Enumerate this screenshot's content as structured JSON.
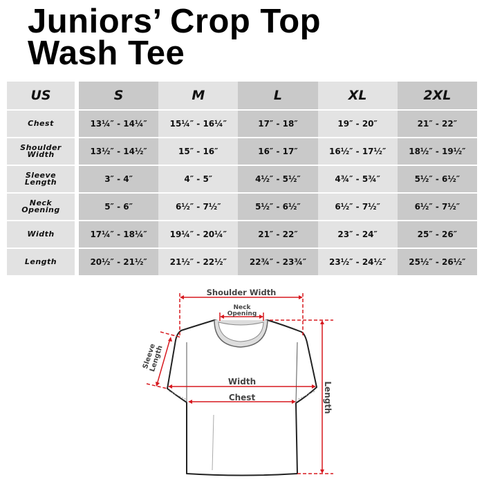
{
  "title_line1": "Juniors’ Crop Top",
  "title_line2": "Wash Tee",
  "table": {
    "corner": "US",
    "sizes": [
      "S",
      "M",
      "L",
      "XL",
      "2XL"
    ],
    "rows": [
      {
        "label1": "Chest",
        "label2": "",
        "values": [
          "13¼″ - 14¼″",
          "15¼″ - 16¼″",
          "17″ - 18″",
          "19″ - 20″",
          "21″ - 22″"
        ]
      },
      {
        "label1": "Shoulder",
        "label2": "Width",
        "values": [
          "13½″ - 14½″",
          "15″ - 16″",
          "16″ - 17″",
          "16½″ - 17½″",
          "18½″ - 19½″"
        ]
      },
      {
        "label1": "Sleeve",
        "label2": "Length",
        "values": [
          "3″ - 4″",
          "4″ - 5″",
          "4½″ - 5½″",
          "4¾″ - 5¾″",
          "5½″ - 6½″"
        ]
      },
      {
        "label1": "Neck",
        "label2": "Opening",
        "values": [
          "5″ - 6″",
          "6½″ - 7½″",
          "5½″ - 6½″",
          "6½″ - 7½″",
          "6½″ - 7½″"
        ]
      },
      {
        "label1": "Width",
        "label2": "",
        "values": [
          "17¼″ - 18¼″",
          "19¼″ - 20¼″",
          "21″ - 22″",
          "23″ - 24″",
          "25″ - 26″"
        ]
      },
      {
        "label1": "Length",
        "label2": "",
        "values": [
          "20½″ - 21½″",
          "21½″ - 22½″",
          "22¾″ - 23¾″",
          "23½″ - 24½″",
          "25½″ - 26½″"
        ]
      }
    ]
  },
  "diagram": {
    "shoulder_width": "Shoulder Width",
    "neck_1": "Neck",
    "neck_2": "Opening",
    "sleeve_1": "Sleeve",
    "sleeve_2": "Length",
    "width": "Width",
    "chest": "Chest",
    "length": "Length",
    "measure_color": "#d7191f"
  }
}
